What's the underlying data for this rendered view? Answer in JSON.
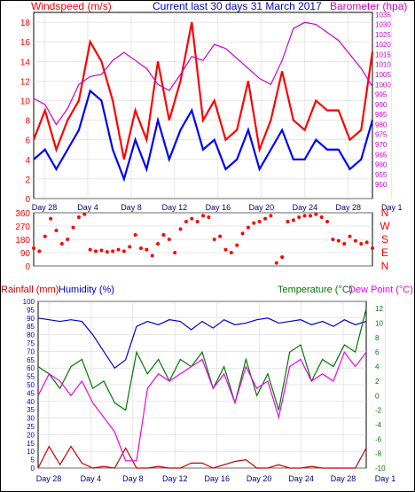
{
  "header": {
    "left_label": "Windspeed (m/s)",
    "center_label": "Current last 30 days 31 March 2017",
    "right_label": "Barometer (hpa)"
  },
  "section_labels": {
    "rain": "Rainfall (mm)",
    "humidity": "Humidity (%)",
    "temperature": "Temperature (°C)",
    "dewpoint": "Dew Point (°C)"
  },
  "colors": {
    "wind_gust": "#ff0000",
    "wind_avg": "#0000ff",
    "barometer": "#cc00cc",
    "direction": "#ff0000",
    "rain": "#cc0000",
    "humidity": "#0000cc",
    "temperature": "#007700",
    "dewpoint": "#ee00ee",
    "grid": "#cfcfcf"
  },
  "chart_data": [
    {
      "type": "line",
      "x_axis": {
        "unit": "day",
        "range": [
          0,
          30
        ],
        "tick_positions": [
          1,
          5,
          9,
          13,
          17,
          21,
          25,
          29,
          33
        ],
        "tick_labels": [
          "Day 28",
          "Day 4",
          "Day 8",
          "Day 12",
          "Day 16",
          "Day 20",
          "Day 24",
          "Day 28",
          "Day 1"
        ]
      },
      "left_axis": {
        "label": "Windspeed (m/s)",
        "range": [
          0,
          19
        ],
        "ticks": [
          0,
          2,
          4,
          6,
          8,
          10,
          12,
          14,
          16,
          18
        ]
      },
      "right_axis": {
        "label": "Barometer (hpa)",
        "range": [
          943,
          1036
        ],
        "ticks": [
          950,
          955,
          960,
          965,
          970,
          975,
          980,
          985,
          990,
          995,
          1000,
          1005,
          1010,
          1015,
          1020,
          1025,
          1030,
          1035
        ]
      },
      "series": [
        {
          "name": "Gust",
          "axis": "left",
          "x": [
            0,
            1,
            2,
            3,
            4,
            5,
            6,
            7,
            8,
            9,
            10,
            11,
            12,
            13,
            14,
            15,
            16,
            17,
            18,
            19,
            20,
            21,
            22,
            23,
            24,
            25,
            26,
            27,
            28,
            29,
            30
          ],
          "values": [
            6,
            9,
            5,
            8,
            10,
            16,
            14,
            10,
            4,
            9,
            6,
            14,
            8,
            12,
            18,
            8,
            10,
            6,
            7,
            12,
            5,
            8,
            13,
            8,
            7,
            10,
            9,
            9,
            6,
            7,
            15
          ]
        },
        {
          "name": "Average",
          "axis": "left",
          "x": [
            0,
            1,
            2,
            3,
            4,
            5,
            6,
            7,
            8,
            9,
            10,
            11,
            12,
            13,
            14,
            15,
            16,
            17,
            18,
            19,
            20,
            21,
            22,
            23,
            24,
            25,
            26,
            27,
            28,
            29,
            30
          ],
          "values": [
            4,
            5,
            3,
            5,
            7,
            11,
            10,
            5,
            2,
            6,
            3,
            8,
            4,
            7,
            9,
            5,
            6,
            3,
            4,
            7,
            3,
            5,
            7,
            4,
            4,
            6,
            5,
            5,
            3,
            4,
            8
          ]
        },
        {
          "name": "Barometer",
          "axis": "right",
          "x": [
            0,
            1,
            2,
            3,
            4,
            5,
            6,
            7,
            8,
            9,
            10,
            11,
            12,
            13,
            14,
            15,
            16,
            17,
            18,
            19,
            20,
            21,
            22,
            23,
            24,
            25,
            26,
            27,
            28,
            29,
            30
          ],
          "values": [
            993,
            990,
            980,
            988,
            1000,
            1004,
            1005,
            1012,
            1016,
            1012,
            1008,
            1000,
            997,
            1005,
            1014,
            1012,
            1020,
            1018,
            1013,
            1008,
            1003,
            1000,
            1012,
            1028,
            1031,
            1030,
            1026,
            1022,
            1015,
            1008,
            999
          ]
        }
      ]
    },
    {
      "type": "scatter",
      "y_labels": [
        "N",
        "W",
        "S",
        "E",
        "N"
      ],
      "y_ticks": [
        360,
        270,
        180,
        90,
        0
      ],
      "range": [
        0,
        360
      ],
      "series": [
        {
          "name": "Direction",
          "x": [
            0,
            0.5,
            1,
            1.5,
            2,
            2.5,
            3,
            3.5,
            4,
            4.5,
            5,
            5.5,
            6,
            6.5,
            7,
            7.5,
            8,
            8.5,
            9,
            9.5,
            10,
            10.5,
            11,
            11.5,
            12,
            12.5,
            13,
            13.5,
            14,
            14.5,
            15,
            15.5,
            16,
            16.5,
            17,
            17.5,
            18,
            18.5,
            19,
            19.5,
            20,
            20.5,
            21,
            21.5,
            22,
            22.5,
            23,
            23.5,
            24,
            24.5,
            25,
            25.5,
            26,
            26.5,
            27,
            27.5,
            28,
            28.5,
            29,
            29.5,
            30
          ],
          "values": [
            120,
            100,
            200,
            320,
            240,
            150,
            180,
            260,
            330,
            350,
            110,
            100,
            105,
            95,
            100,
            110,
            100,
            130,
            210,
            120,
            110,
            70,
            150,
            210,
            180,
            90,
            250,
            300,
            320,
            300,
            340,
            330,
            180,
            200,
            110,
            90,
            140,
            220,
            260,
            290,
            300,
            320,
            340,
            20,
            60,
            300,
            310,
            330,
            340,
            340,
            350,
            330,
            300,
            180,
            170,
            150,
            200,
            170,
            150,
            160,
            120
          ]
        }
      ]
    },
    {
      "type": "line",
      "x_axis": {
        "unit": "day",
        "range": [
          0,
          30
        ],
        "tick_positions": [
          1,
          5,
          9,
          13,
          17,
          21,
          25,
          29,
          33
        ],
        "tick_labels": [
          "Day 28",
          "Day 4",
          "Day 8",
          "Day 12",
          "Day 16",
          "Day 20",
          "Day 24",
          "Day 28",
          "Day 1"
        ]
      },
      "left_axis": {
        "label": "Rainfall (mm) / Humidity (%)",
        "range": [
          0,
          100
        ],
        "ticks": [
          0,
          5,
          10,
          15,
          20,
          25,
          30,
          35,
          40,
          45,
          50,
          55,
          60,
          65,
          70,
          75,
          80,
          85,
          90,
          95,
          100
        ]
      },
      "right_axis": {
        "label": "Temperature (°C) / Dew Point (°C)",
        "range": [
          -10,
          13
        ],
        "ticks": [
          -10,
          -8,
          -6,
          -4,
          -2,
          0,
          2,
          4,
          6,
          8,
          10,
          12
        ]
      },
      "series": [
        {
          "name": "Rainfall",
          "axis": "left",
          "x": [
            0,
            1,
            2,
            3,
            4,
            5,
            6,
            7,
            8,
            9,
            10,
            11,
            12,
            13,
            14,
            15,
            16,
            17,
            18,
            19,
            20,
            21,
            22,
            23,
            24,
            25,
            26,
            27,
            28,
            29,
            30
          ],
          "values": [
            0,
            13,
            2,
            13,
            3,
            0,
            1,
            0,
            12,
            0,
            0,
            1,
            0,
            0,
            3,
            3,
            0,
            2,
            4,
            5,
            0,
            0,
            2,
            0,
            0,
            1,
            0,
            0,
            0,
            0,
            12
          ]
        },
        {
          "name": "Humidity",
          "axis": "left",
          "x": [
            0,
            1,
            2,
            3,
            4,
            5,
            6,
            7,
            8,
            9,
            10,
            11,
            12,
            13,
            14,
            15,
            16,
            17,
            18,
            19,
            20,
            21,
            22,
            23,
            24,
            25,
            26,
            27,
            28,
            29,
            30
          ],
          "values": [
            90,
            89,
            88,
            89,
            88,
            80,
            70,
            60,
            65,
            85,
            88,
            86,
            89,
            88,
            83,
            88,
            84,
            89,
            86,
            87,
            89,
            90,
            87,
            88,
            89,
            86,
            88,
            85,
            89,
            86,
            88
          ]
        },
        {
          "name": "Temperature",
          "axis": "right",
          "x": [
            0,
            1,
            2,
            3,
            4,
            5,
            6,
            7,
            8,
            9,
            10,
            11,
            12,
            13,
            14,
            15,
            16,
            17,
            18,
            19,
            20,
            21,
            22,
            23,
            24,
            25,
            26,
            27,
            28,
            29,
            30
          ],
          "values": [
            4,
            3,
            1,
            4,
            5,
            1,
            2,
            -1,
            -2,
            6,
            3,
            5,
            2,
            5,
            4,
            6,
            1,
            4,
            -1,
            5,
            0,
            3,
            -2,
            6,
            7,
            2,
            5,
            4,
            7,
            6,
            12
          ]
        },
        {
          "name": "Dew Point",
          "axis": "right",
          "x": [
            0,
            1,
            2,
            3,
            4,
            5,
            6,
            7,
            8,
            9,
            10,
            11,
            12,
            13,
            14,
            15,
            16,
            17,
            18,
            19,
            20,
            21,
            22,
            23,
            24,
            25,
            26,
            27,
            28,
            29,
            30
          ],
          "values": [
            0,
            3,
            2,
            0,
            2,
            -1,
            -3,
            -5,
            -9,
            -9,
            1,
            3,
            2,
            3,
            4,
            5,
            1,
            3,
            -1,
            4,
            1,
            2,
            -3,
            4,
            5,
            2,
            3,
            2,
            6,
            4,
            6
          ]
        }
      ]
    }
  ]
}
